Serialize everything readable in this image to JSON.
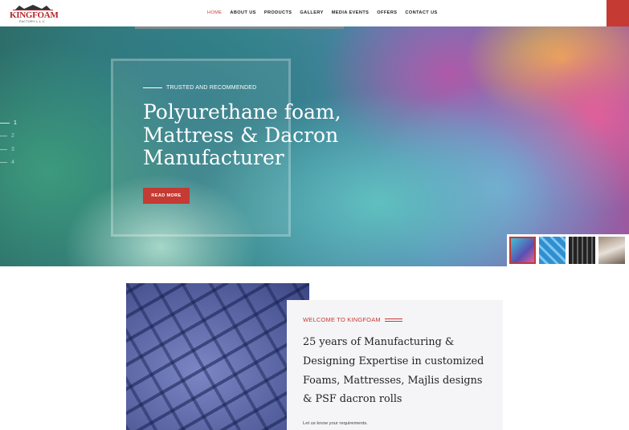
{
  "header": {
    "logo": {
      "name": "KINGFOAM",
      "subtitle": "FACTORY L.L.C"
    },
    "nav": [
      "HOME",
      "ABOUT US",
      "PRODUCTS",
      "GALLERY",
      "MEDIA EVENTS",
      "OFFERS",
      "CONTACT US"
    ]
  },
  "hero": {
    "kicker": "TRUSTED AND RECOMMENDED",
    "headline": [
      "Polyurethane foam,",
      "Mattress & Dacron",
      "Manufacturer"
    ],
    "button": "READ MORE",
    "slides": [
      "1",
      "2",
      "3",
      "4"
    ]
  },
  "welcome": {
    "kicker": "WELCOME TO KINGFOAM",
    "text": "25 years of Manufacturing & Designing Expertise in customized Foams, Mattresses, Majlis designs & PSF dacron rolls",
    "note": "Let us know your requirements."
  }
}
